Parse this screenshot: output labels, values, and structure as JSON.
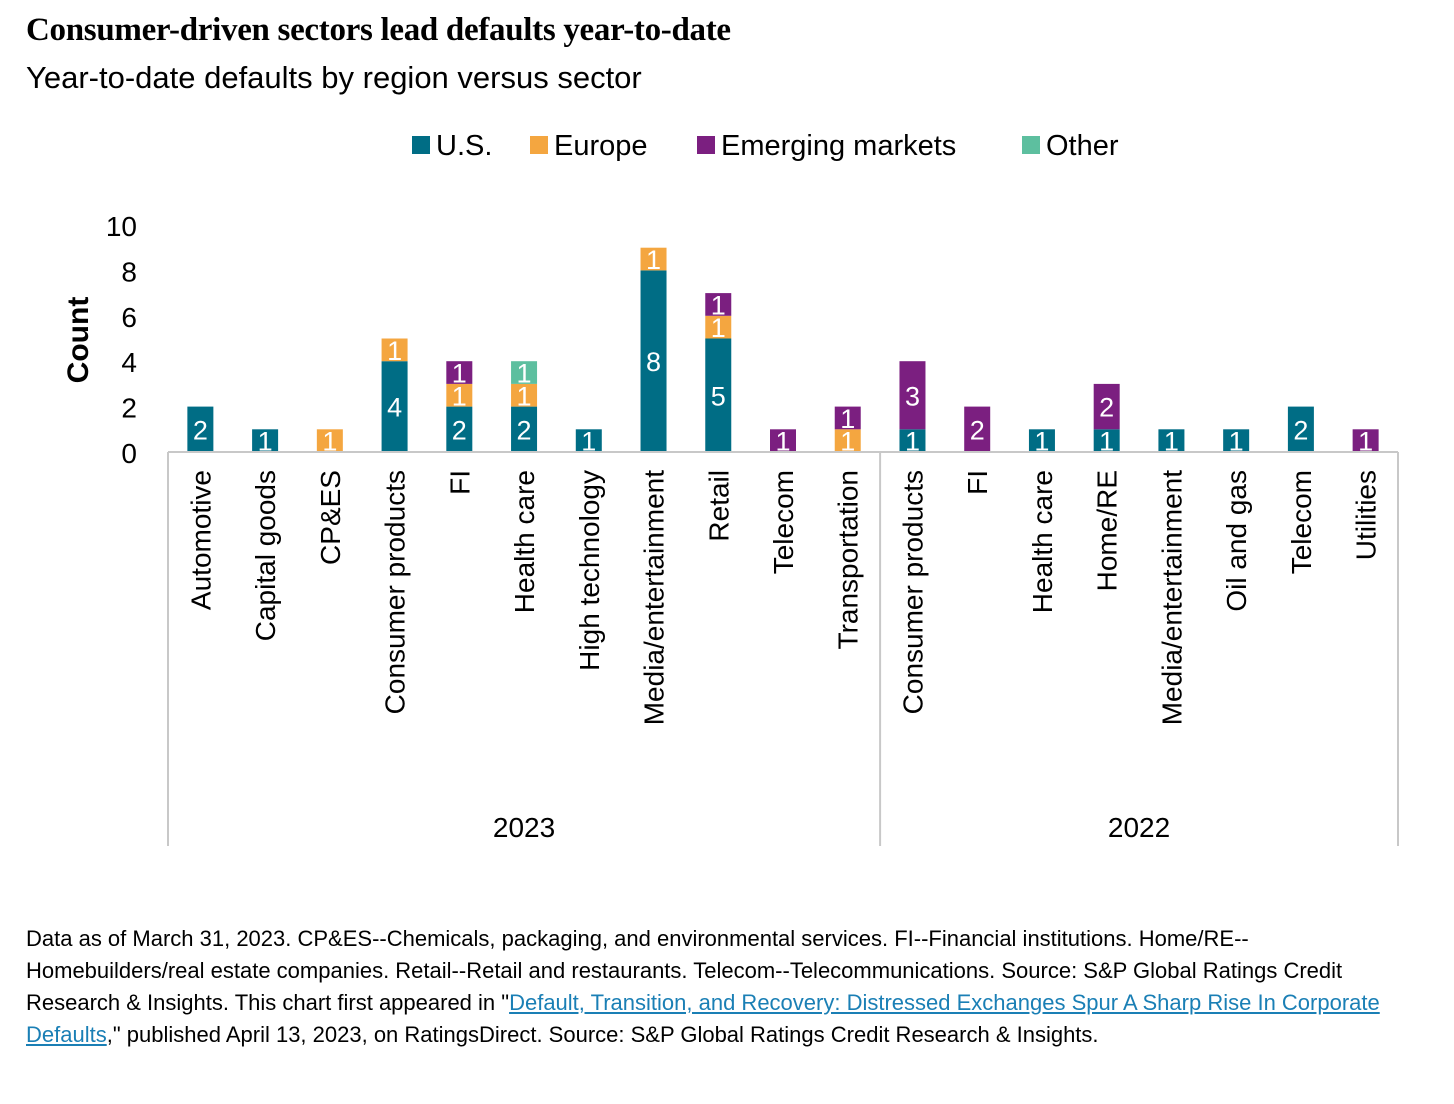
{
  "title": "Consumer-driven sectors lead defaults year-to-date",
  "subtitle": "Year-to-date defaults by region versus sector",
  "colors": {
    "us": "#006d85",
    "europe": "#f4a640",
    "emerging": "#7b1f80",
    "other": "#5dbf9f",
    "axis": "#c8c8c8"
  },
  "chart_data": {
    "type": "bar",
    "stacked": true,
    "ylabel": "Count",
    "ylim": [
      0,
      10
    ],
    "yticks": [
      0,
      2,
      4,
      6,
      8,
      10
    ],
    "legend_position": "top-center",
    "groups": [
      {
        "label": "2023",
        "categories": [
          "Automotive",
          "Capital goods",
          "CP&ES",
          "Consumer products",
          "FI",
          "Health care",
          "High technology",
          "Media/entertainment",
          "Retail",
          "Telecom",
          "Transportation"
        ]
      },
      {
        "label": "2022",
        "categories": [
          "Consumer products",
          "FI",
          "Health care",
          "Home/RE",
          "Media/entertainment",
          "Oil and gas",
          "Telecom",
          "Utilities"
        ]
      }
    ],
    "categories": [
      "Automotive",
      "Capital goods",
      "CP&ES",
      "Consumer products",
      "FI",
      "Health care",
      "High technology",
      "Media/entertainment",
      "Retail",
      "Telecom",
      "Transportation",
      "Consumer products",
      "FI",
      "Health care",
      "Home/RE",
      "Media/entertainment",
      "Oil and gas",
      "Telecom",
      "Utilities"
    ],
    "series": [
      {
        "name": "U.S.",
        "color_key": "us",
        "values": [
          2,
          1,
          0,
          4,
          2,
          2,
          1,
          8,
          5,
          0,
          0,
          1,
          0,
          1,
          1,
          1,
          1,
          2,
          0
        ]
      },
      {
        "name": "Europe",
        "color_key": "europe",
        "values": [
          0,
          0,
          1,
          1,
          1,
          1,
          0,
          1,
          1,
          0,
          1,
          0,
          0,
          0,
          0,
          0,
          0,
          0,
          0
        ]
      },
      {
        "name": "Emerging markets",
        "color_key": "emerging",
        "values": [
          0,
          0,
          0,
          0,
          1,
          0,
          0,
          0,
          1,
          1,
          1,
          3,
          2,
          0,
          2,
          0,
          0,
          0,
          1
        ]
      },
      {
        "name": "Other",
        "color_key": "other",
        "values": [
          0,
          0,
          0,
          0,
          0,
          1,
          0,
          0,
          0,
          0,
          0,
          0,
          0,
          0,
          0,
          0,
          0,
          0,
          0
        ]
      }
    ]
  },
  "footnote": {
    "part1": "Data as of March 31, 2023. CP&ES--Chemicals, packaging, and environmental services. FI--Financial institutions. Home/RE--Homebuilders/real estate companies. Retail--Retail and restaurants. Telecom--Telecommunications. Source: S&P Global Ratings Credit Research & Insights. This chart first appeared in \"",
    "link": "Default, Transition, and Recovery: Distressed Exchanges Spur A Sharp Rise In Corporate Defaults",
    "part2": ",\" published April 13, 2023, on RatingsDirect. Source: S&P Global Ratings Credit Research & Insights."
  }
}
